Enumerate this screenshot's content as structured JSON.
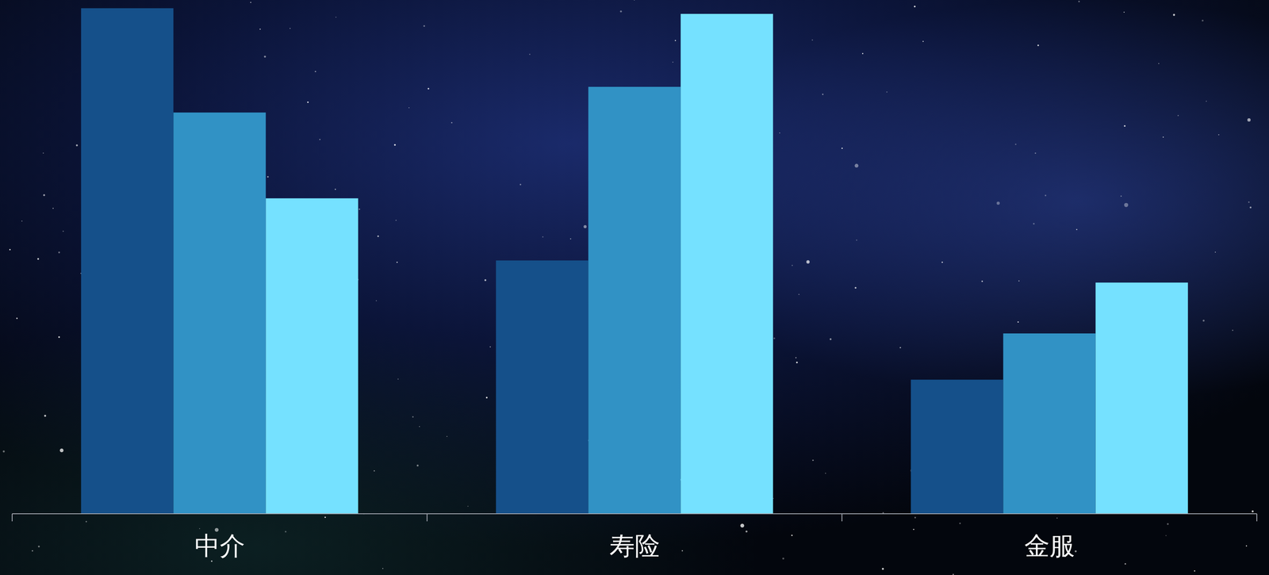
{
  "chart_data": {
    "type": "bar",
    "categories": [
      "中介",
      "寿险",
      "金服"
    ],
    "series": [
      {
        "color": "#15508a",
        "values": [
          98.4,
          49.3,
          26.1
        ]
      },
      {
        "color": "#3192c5",
        "values": [
          78.1,
          83.1,
          35.1
        ]
      },
      {
        "color": "#75e1ff",
        "values": [
          61.4,
          97.3,
          45.0
        ]
      }
    ],
    "ylim": [
      0,
      100
    ],
    "grid": false,
    "tick_labels": "x"
  }
}
